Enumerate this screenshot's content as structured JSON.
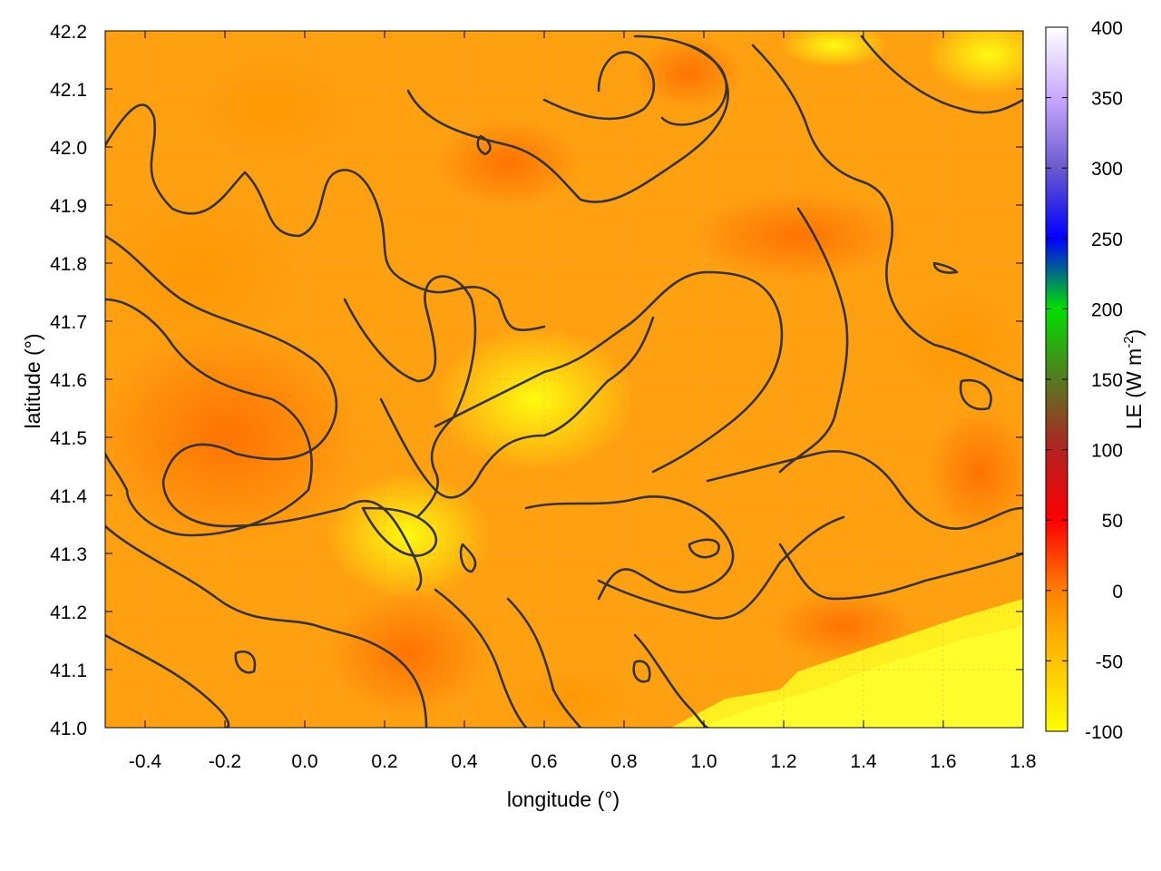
{
  "chart_data": {
    "type": "heatmap",
    "title": "",
    "xlabel": "longitude (°)",
    "ylabel": "latitude (°)",
    "xlim": [
      -0.5,
      1.8
    ],
    "ylim": [
      41.0,
      42.2
    ],
    "x_ticks": [
      "-0.4",
      "-0.2",
      "0.0",
      "0.2",
      "0.4",
      "0.6",
      "0.8",
      "1.0",
      "1.2",
      "1.4",
      "1.6",
      "1.8"
    ],
    "y_ticks": [
      "41.0",
      "41.1",
      "41.2",
      "41.3",
      "41.4",
      "41.5",
      "41.6",
      "41.7",
      "41.8",
      "41.9",
      "42.0",
      "42.1",
      "42.2"
    ],
    "grid": true,
    "colorbar": {
      "label": "LE (W m",
      "label_sup": "-2",
      "label_close": ")",
      "range": [
        -100,
        400
      ],
      "ticks": [
        "400",
        "350",
        "300",
        "250",
        "200",
        "150",
        "100",
        "50",
        "0",
        "-50",
        "-100"
      ],
      "palette": [
        "#ffff00",
        "#ff8c00",
        "#ff0000",
        "#b22222",
        "#228b22",
        "#00ff00",
        "#0000ff",
        "#d8b8ff",
        "#ffffff"
      ]
    },
    "field_description_values": {
      "min_shown": -100,
      "typical_range": [
        -80,
        10
      ]
    },
    "contours": true
  }
}
